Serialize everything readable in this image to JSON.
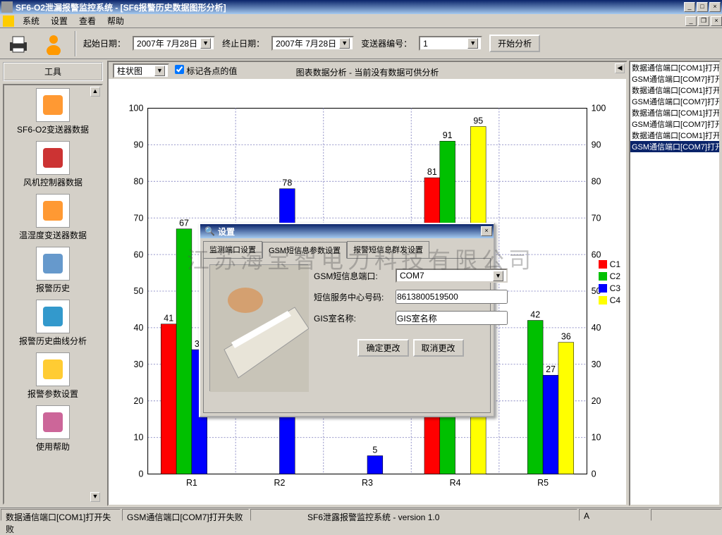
{
  "window": {
    "title": "SF6-O2泄漏报警监控系统 - [SF6报警历史数据图形分析]"
  },
  "menu": [
    "系统",
    "设置",
    "查看",
    "帮助"
  ],
  "toolbar": {
    "start_label": "起始日期：",
    "start_value": "2007年 7月28日",
    "end_label": "终止日期：",
    "end_value": "2007年 7月28日",
    "tx_label": "变送器编号：",
    "tx_value": "1",
    "analyze": "开始分析"
  },
  "sidebar": {
    "title": "工具",
    "items": [
      "SF6-O2变送器数据",
      "风机控制器数据",
      "温湿度变送器数据",
      "报警历史",
      "报警历史曲线分析",
      "报警参数设置",
      "使用帮助"
    ]
  },
  "chart": {
    "type_select": "柱状图",
    "mark_values_label": "标记各点的值",
    "title": "图表数据分析 - 当前没有数据可供分析",
    "type": "bar-grouped",
    "categories": [
      "R1",
      "R2",
      "R3",
      "R4",
      "R5"
    ],
    "series": [
      {
        "name": "C1",
        "color": "#ff0000",
        "values": [
          41,
          0,
          0,
          81,
          0
        ]
      },
      {
        "name": "C2",
        "color": "#00c000",
        "values": [
          67,
          0,
          0,
          91,
          42
        ]
      },
      {
        "name": "C3",
        "color": "#0000ff",
        "values": [
          34,
          78,
          5,
          0,
          27
        ]
      },
      {
        "name": "C4",
        "color": "#ffff00",
        "values": [
          0,
          0,
          0,
          95,
          36
        ]
      }
    ],
    "ylim": [
      0,
      100
    ],
    "ytick_step": 10,
    "background": "#ffffff",
    "grid_color": "#9999cc",
    "label_fontsize": 11
  },
  "log": {
    "items": [
      "数据通信端口[COM1]打开",
      "GSM通信端口[COM7]打开",
      "数据通信端口[COM1]打开",
      "GSM通信端口[COM7]打开",
      "数据通信端口[COM1]打开",
      "GSM通信端口[COM7]打开",
      "数据通信端口[COM1]打开",
      "GSM通信端口[COM7]打开"
    ],
    "selected_index": 7
  },
  "dialog": {
    "title": "设置",
    "tabs": [
      "监测端口设置",
      "GSM短信息参数设置",
      "报警短信息群发设置"
    ],
    "active_tab": 1,
    "fields": {
      "port_label": "GSM短信息端口:",
      "port_value": "COM7",
      "center_label": "短信服务中心号码:",
      "center_value": "8613800519500",
      "room_label": "GIS室名称:",
      "room_value": "GIS室名称"
    },
    "ok": "确定更改",
    "cancel": "取消更改"
  },
  "statusbar": {
    "s1": "数据通信端口[COM1]打开失败",
    "s2": "GSM通信端口[COM7]打开失败",
    "s3": "SF6泄露报警监控系统 - version 1.0",
    "s4": "A"
  },
  "watermark": "江苏海宝智电力科技有限公司"
}
